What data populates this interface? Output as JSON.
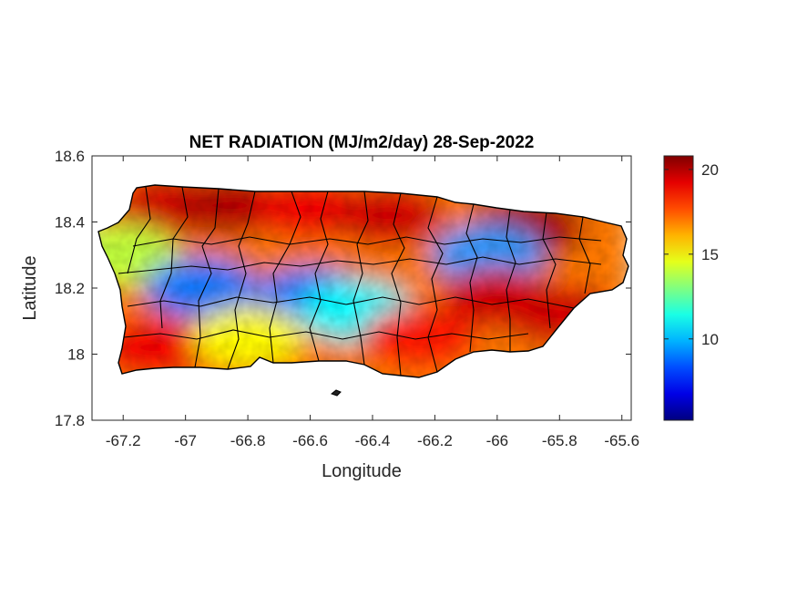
{
  "chart_data": {
    "type": "heatmap",
    "title": "NET RADIATION (MJ/m2/day) 28-Sep-2022",
    "xlabel": "Longitude",
    "ylabel": "Latitude",
    "xlim": [
      -67.3,
      -65.57
    ],
    "ylim": [
      17.8,
      18.6
    ],
    "xticks": [
      -67.2,
      -67,
      -66.8,
      -66.6,
      -66.4,
      -66.2,
      -66,
      -65.8,
      -65.6
    ],
    "xtick_labels": [
      "-67.2",
      "-67",
      "-66.8",
      "-66.6",
      "-66.4",
      "-66.2",
      "-66",
      "-65.8",
      "-65.6"
    ],
    "yticks": [
      17.8,
      18,
      18.2,
      18.4,
      18.6
    ],
    "ytick_labels": [
      "17.8",
      "18",
      "18.2",
      "18.4",
      "18.6"
    ],
    "colormap": "jet",
    "clim": [
      5.2,
      20.8
    ],
    "colorbar_ticks": [
      10,
      15,
      20
    ],
    "colorbar_tick_labels": [
      "10",
      "15",
      "20"
    ],
    "colors": {
      "low": "#00008f",
      "mid": "#ffff00",
      "high": "#800000",
      "boundary": "#000000"
    },
    "regions": [
      {
        "name": "",
        "lon": -67.05,
        "lat": 18.45,
        "value": 19.5
      },
      {
        "name": "",
        "lon": -66.85,
        "lat": 18.45,
        "value": 20.0
      },
      {
        "name": "",
        "lon": -66.6,
        "lat": 18.44,
        "value": 19.0
      },
      {
        "name": "",
        "lon": -66.35,
        "lat": 18.42,
        "value": 19.5
      },
      {
        "name": "",
        "lon": -65.9,
        "lat": 18.38,
        "value": 20.2
      },
      {
        "name": "",
        "lon": -66.03,
        "lat": 18.3,
        "value": 9.5
      },
      {
        "name": "",
        "lon": -67.2,
        "lat": 18.3,
        "value": 14.0
      },
      {
        "name": "",
        "lon": -66.95,
        "lat": 18.2,
        "value": 9.0
      },
      {
        "name": "",
        "lon": -66.6,
        "lat": 18.17,
        "value": 9.0
      },
      {
        "name": "",
        "lon": -66.45,
        "lat": 18.13,
        "value": 11.0
      },
      {
        "name": "",
        "lon": -66.0,
        "lat": 18.17,
        "value": 19.5
      },
      {
        "name": "",
        "lon": -67.1,
        "lat": 18.02,
        "value": 19.0
      },
      {
        "name": "",
        "lon": -66.8,
        "lat": 18.05,
        "value": 15.0
      },
      {
        "name": "",
        "lon": -66.25,
        "lat": 18.05,
        "value": 18.5
      },
      {
        "name": "",
        "lon": -65.8,
        "lat": 18.12,
        "value": 19.5
      }
    ]
  }
}
